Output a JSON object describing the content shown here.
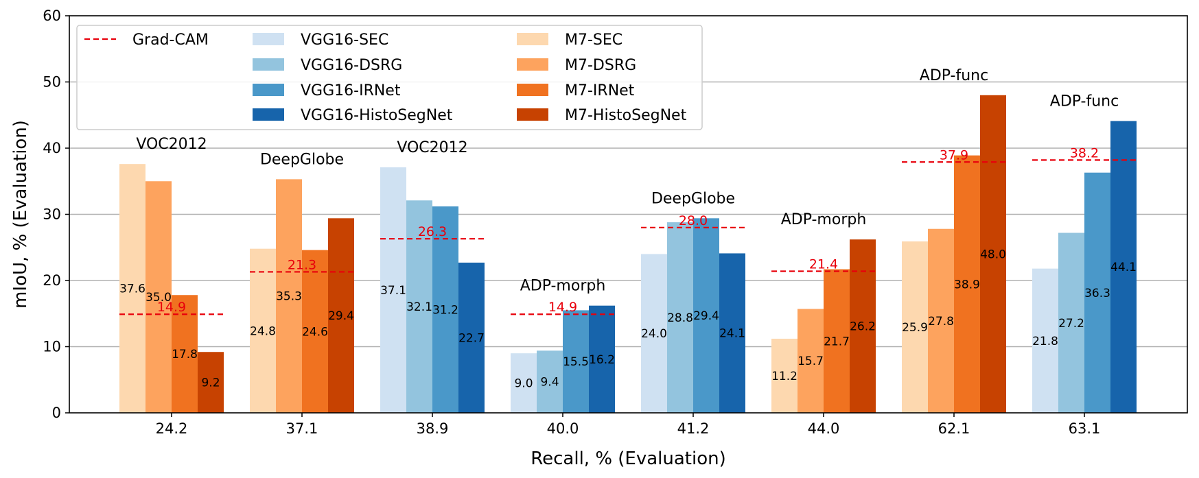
{
  "chart_data": {
    "type": "bar",
    "xlabel": "Recall, % (Evaluation)",
    "ylabel": "mIoU, % (Evaluation)",
    "ylim": [
      0,
      60
    ],
    "yticks": [
      0,
      10,
      20,
      30,
      40,
      50,
      60
    ],
    "grid": "y",
    "legend_position": "top-left",
    "colors": {
      "VGG16-SEC": "#cfe1f2",
      "VGG16-DSRG": "#93c4de",
      "VGG16-IRNet": "#4a98c9",
      "VGG16-HistoSegNet": "#1764ab",
      "M7-SEC": "#fdd8af",
      "M7-DSRG": "#fda35e",
      "M7-IRNet": "#f07220",
      "M7-HistoSegNet": "#c74201",
      "Grad-CAM": "#e8000b"
    },
    "legend": [
      "Grad-CAM",
      "VGG16-SEC",
      "VGG16-DSRG",
      "VGG16-IRNet",
      "VGG16-HistoSegNet",
      "M7-SEC",
      "M7-DSRG",
      "M7-IRNet",
      "M7-HistoSegNet"
    ],
    "groups": [
      {
        "x_label": "24.2",
        "dataset": "VOC2012",
        "family": "M7",
        "values": [
          37.6,
          35.0,
          17.8,
          9.2
        ],
        "labels": [
          "37.6",
          "35.0",
          "17.8",
          "9.2"
        ],
        "gradcam": 14.9,
        "gradcam_label": "14.9"
      },
      {
        "x_label": "37.1",
        "dataset": "DeepGlobe",
        "family": "M7",
        "values": [
          24.8,
          35.3,
          24.6,
          29.4
        ],
        "labels": [
          "24.8",
          "35.3",
          "24.6",
          "29.4"
        ],
        "gradcam": 21.3,
        "gradcam_label": "21.3"
      },
      {
        "x_label": "38.9",
        "dataset": "VOC2012",
        "family": "VGG16",
        "values": [
          37.1,
          32.1,
          31.2,
          22.7
        ],
        "labels": [
          "37.1",
          "32.1",
          "31.2",
          "22.7"
        ],
        "gradcam": 26.3,
        "gradcam_label": "26.3"
      },
      {
        "x_label": "40.0",
        "dataset": "ADP-morph",
        "family": "VGG16",
        "values": [
          9.0,
          9.4,
          15.5,
          16.2
        ],
        "labels": [
          "9.0",
          "9.4",
          "15.5",
          "16.2"
        ],
        "gradcam": 14.9,
        "gradcam_label": "14.9"
      },
      {
        "x_label": "41.2",
        "dataset": "DeepGlobe",
        "family": "VGG16",
        "values": [
          24.0,
          28.8,
          29.4,
          24.1
        ],
        "labels": [
          "24.0",
          "28.8",
          "29.4",
          "24.1"
        ],
        "gradcam": 28.0,
        "gradcam_label": "28.0"
      },
      {
        "x_label": "44.0",
        "dataset": "ADP-morph",
        "family": "M7",
        "values": [
          11.2,
          15.7,
          21.7,
          26.2
        ],
        "labels": [
          "11.2",
          "15.7",
          "21.7",
          "26.2"
        ],
        "gradcam": 21.4,
        "gradcam_label": "21.4"
      },
      {
        "x_label": "62.1",
        "dataset": "ADP-func",
        "family": "M7",
        "values": [
          25.9,
          27.8,
          38.9,
          48.0
        ],
        "labels": [
          "25.9",
          "27.8",
          "38.9",
          "48.0"
        ],
        "gradcam": 37.9,
        "gradcam_label": "37.9"
      },
      {
        "x_label": "63.1",
        "dataset": "ADP-func",
        "family": "VGG16",
        "values": [
          21.8,
          27.2,
          36.3,
          44.1
        ],
        "labels": [
          "21.8",
          "27.2",
          "36.3",
          "44.1"
        ],
        "gradcam": 38.2,
        "gradcam_label": "38.2"
      }
    ]
  }
}
